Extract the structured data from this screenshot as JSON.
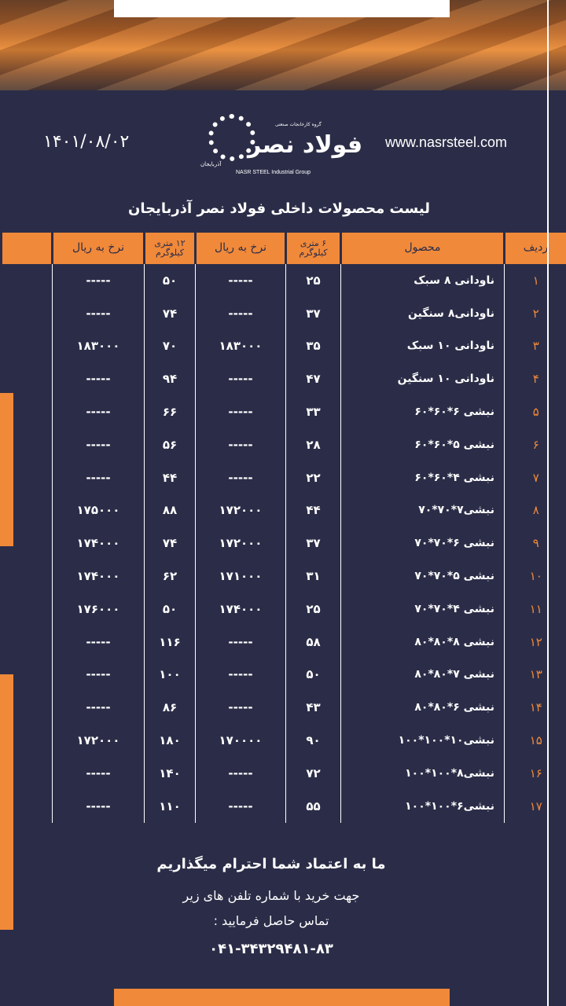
{
  "header": {
    "date": "۱۴۰۱/۰۸/۰۲",
    "website": "www.nasrsteel.com",
    "logo_text": "فولاد نصر",
    "logo_en": "NASR STEEL Industrial Group",
    "logo_sub": "گروه کارخانجات صنعتی",
    "logo_region": "آذربایجان"
  },
  "title": "لیست محصولات داخلی فولاد نصر آذربایجان",
  "columns": {
    "row": "ردیف",
    "product": "محصول",
    "kg6": "۶ متری کیلوگرم",
    "price6": "نرخ به ریال",
    "kg12": "۱۲ متری کیلوگرم",
    "price12": "نرخ به ریال"
  },
  "rows": [
    {
      "n": "۱",
      "product": "ناودانی ۸ سبک",
      "kg6": "۲۵",
      "price6": "-----",
      "kg12": "۵۰",
      "price12": "-----"
    },
    {
      "n": "۲",
      "product": "ناودانی۸ سنگین",
      "kg6": "۳۷",
      "price6": "-----",
      "kg12": "۷۴",
      "price12": "-----"
    },
    {
      "n": "۳",
      "product": "ناودانی ۱۰ سبک",
      "kg6": "۳۵",
      "price6": "۱۸۳۰۰۰",
      "kg12": "۷۰",
      "price12": "۱۸۳۰۰۰"
    },
    {
      "n": "۴",
      "product": "ناودانی ۱۰ سنگین",
      "kg6": "۴۷",
      "price6": "-----",
      "kg12": "۹۴",
      "price12": "-----"
    },
    {
      "n": "۵",
      "product": "نبشی ۶*۶۰*۶۰",
      "kg6": "۳۳",
      "price6": "-----",
      "kg12": "۶۶",
      "price12": "-----"
    },
    {
      "n": "۶",
      "product": "نبشی ۵*۶۰*۶۰",
      "kg6": "۲۸",
      "price6": "-----",
      "kg12": "۵۶",
      "price12": "-----"
    },
    {
      "n": "۷",
      "product": "نبشی ۴*۶۰*۶۰",
      "kg6": "۲۲",
      "price6": "-----",
      "kg12": "۴۴",
      "price12": "-----"
    },
    {
      "n": "۸",
      "product": "نبشی۷*۷۰*۷۰",
      "kg6": "۴۴",
      "price6": "۱۷۲۰۰۰",
      "kg12": "۸۸",
      "price12": "۱۷۵۰۰۰"
    },
    {
      "n": "۹",
      "product": "نبشی ۶*۷۰*۷۰",
      "kg6": "۳۷",
      "price6": "۱۷۲۰۰۰",
      "kg12": "۷۴",
      "price12": "۱۷۴۰۰۰"
    },
    {
      "n": "۱۰",
      "product": "نبشی ۵*۷۰*۷۰",
      "kg6": "۳۱",
      "price6": "۱۷۱۰۰۰",
      "kg12": "۶۲",
      "price12": "۱۷۴۰۰۰"
    },
    {
      "n": "۱۱",
      "product": "نبشی ۴*۷۰*۷۰",
      "kg6": "۲۵",
      "price6": "۱۷۴۰۰۰",
      "kg12": "۵۰",
      "price12": "۱۷۶۰۰۰"
    },
    {
      "n": "۱۲",
      "product": "نبشی ۸*۸۰*۸۰",
      "kg6": "۵۸",
      "price6": "-----",
      "kg12": "۱۱۶",
      "price12": "-----"
    },
    {
      "n": "۱۳",
      "product": "نبشی ۷*۸۰*۸۰",
      "kg6": "۵۰",
      "price6": "-----",
      "kg12": "۱۰۰",
      "price12": "-----"
    },
    {
      "n": "۱۴",
      "product": "نبشی ۶*۸۰*۸۰",
      "kg6": "۴۳",
      "price6": "-----",
      "kg12": "۸۶",
      "price12": "-----"
    },
    {
      "n": "۱۵",
      "product": "نبشی۱۰*۱۰۰*۱۰۰",
      "kg6": "۹۰",
      "price6": "۱۷۰۰۰۰",
      "kg12": "۱۸۰",
      "price12": "۱۷۲۰۰۰"
    },
    {
      "n": "۱۶",
      "product": "نبشی۸*۱۰۰*۱۰۰",
      "kg6": "۷۲",
      "price6": "-----",
      "kg12": "۱۴۰",
      "price12": "-----"
    },
    {
      "n": "۱۷",
      "product": "نبشی۶*۱۰۰*۱۰۰",
      "kg6": "۵۵",
      "price6": "-----",
      "kg12": "۱۱۰",
      "price12": "-----"
    }
  ],
  "footer": {
    "slogan": "ما به اعتماد شما احترام میگذاریم",
    "line1": "جهت خرید با شماره تلفن های زیر",
    "line2": "تماس حاصل فرمایید :",
    "phone": "۰۴۱-۳۴۳۲۹۴۸۱-۸۳"
  },
  "colors": {
    "background": "#2b2d48",
    "accent": "#f0893a"
  }
}
